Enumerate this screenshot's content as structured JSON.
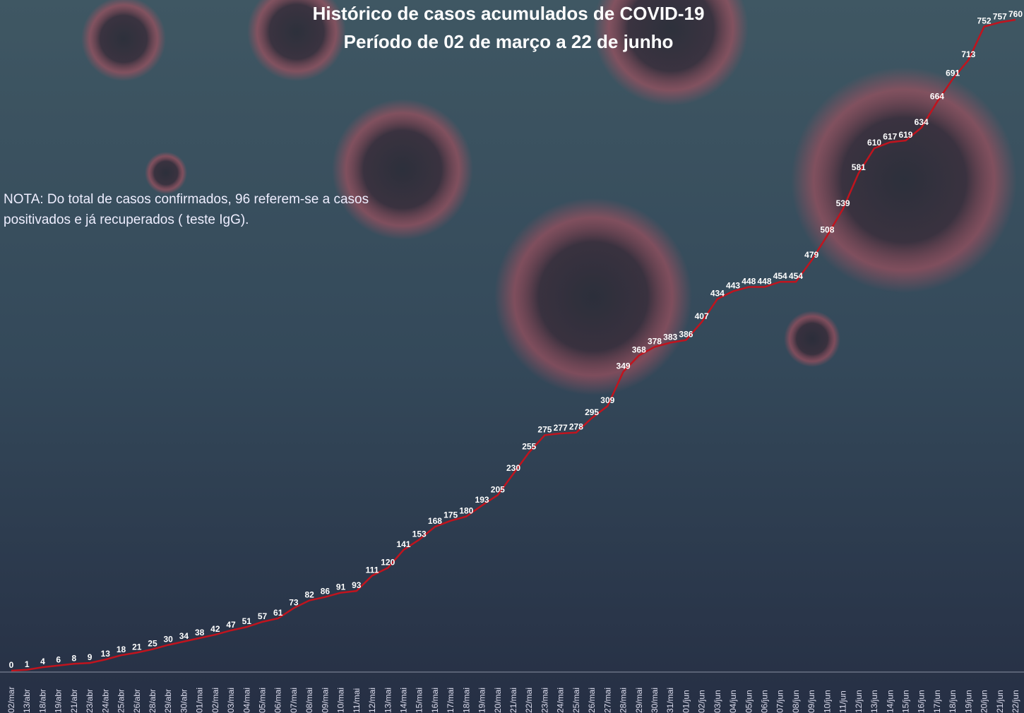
{
  "chart_data": {
    "type": "line",
    "title": "Histórico de casos acumulados de COVID-19",
    "subtitle": "Período de 02 de março a 22 de junho",
    "annotation": "NOTA: Do total de casos confirmados, 96 referem-se a casos positivados e já recuperados ( teste  IgG).",
    "categories": [
      "02/mar",
      "13/abr",
      "18/abr",
      "19/abr",
      "21/abr",
      "23/abr",
      "24/abr",
      "25/abr",
      "26/abr",
      "28/abr",
      "29/abr",
      "30/abr",
      "01/mai",
      "02/mai",
      "03/mai",
      "04/mai",
      "05/mai",
      "06/mai",
      "07/mai",
      "08/mai",
      "09/mai",
      "10/mai",
      "11/mai",
      "12/mai",
      "13/mai",
      "14/mai",
      "15/mai",
      "16/mai",
      "17/mai",
      "18/mai",
      "19/mai",
      "20/mai",
      "21/mai",
      "22/mai",
      "23/mai",
      "24/mai",
      "25/mai",
      "26/mai",
      "27/mai",
      "28/mai",
      "29/mai",
      "30/mai",
      "31/mai",
      "01/jun",
      "02/jun",
      "03/jun",
      "04/jun",
      "05/jun",
      "06/jun",
      "07/jun",
      "08/jun",
      "09/jun",
      "10/jun",
      "11/jun",
      "12/jun",
      "13/jun",
      "14/jun",
      "15/jun",
      "16/jun",
      "17/jun",
      "18/jun",
      "19/jun",
      "20/jun",
      "21/jun",
      "22/jun"
    ],
    "values": [
      0,
      1,
      4,
      6,
      8,
      9,
      13,
      18,
      21,
      25,
      30,
      34,
      38,
      42,
      47,
      51,
      57,
      61,
      73,
      82,
      86,
      91,
      93,
      111,
      120,
      141,
      153,
      168,
      175,
      180,
      193,
      205,
      230,
      255,
      275,
      277,
      278,
      295,
      309,
      349,
      368,
      378,
      383,
      386,
      407,
      434,
      443,
      448,
      448,
      454,
      454,
      479,
      508,
      539,
      581,
      610,
      617,
      619,
      634,
      664,
      691,
      713,
      752,
      757,
      760
    ],
    "color": "#c0141e"
  }
}
